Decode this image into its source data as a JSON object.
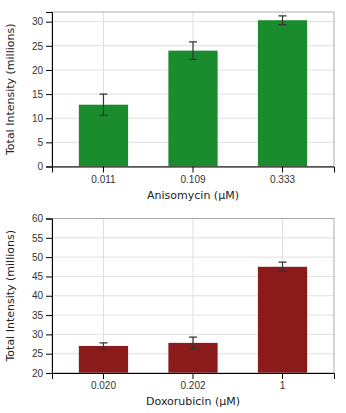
{
  "chart_data": [
    {
      "type": "bar",
      "categories": [
        "0.011",
        "0.109",
        "0.333"
      ],
      "values": [
        12.8,
        24.0,
        30.3
      ],
      "errors": [
        2.2,
        1.8,
        0.9
      ],
      "color": "#1a8c2e",
      "xlabel": "Anisomycin (μM)",
      "ylabel": "Total Intensity (millions)",
      "ylim": [
        0,
        32
      ],
      "yticks": [
        0,
        5,
        10,
        15,
        20,
        25,
        30
      ],
      "grid": true
    },
    {
      "type": "bar",
      "categories": [
        "0.020",
        "0.202",
        "1"
      ],
      "values": [
        27.0,
        27.8,
        47.5
      ],
      "errors": [
        0.8,
        1.5,
        1.2
      ],
      "color": "#8b1a1a",
      "xlabel": "Doxorubicin (μM)",
      "ylabel": "Total Intensity (millions)",
      "ylim": [
        20,
        60
      ],
      "yticks": [
        20,
        25,
        30,
        35,
        40,
        45,
        50,
        55,
        60
      ],
      "grid": true
    }
  ]
}
